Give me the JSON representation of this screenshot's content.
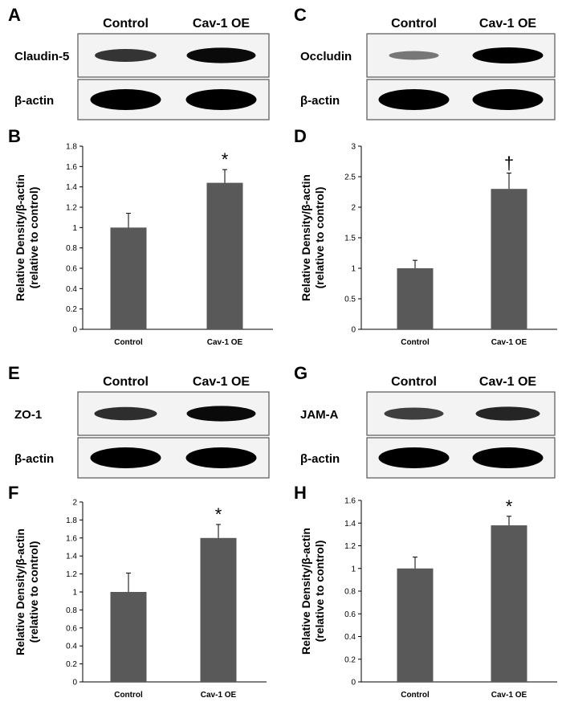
{
  "colors": {
    "bar": "#595959",
    "band": "#000000",
    "frame": "#555555"
  },
  "blots": [
    {
      "label": "A",
      "columns": [
        "Control",
        "Cav-1 OE"
      ],
      "rows": [
        {
          "name": "Claudin-5",
          "intensity": [
            0.72,
            0.95
          ]
        },
        {
          "name": "β-actin",
          "intensity": [
            1.0,
            1.0
          ]
        }
      ]
    },
    {
      "label": "C",
      "columns": [
        "Control",
        "Cav-1 OE"
      ],
      "rows": [
        {
          "name": "Occludin",
          "intensity": [
            0.35,
            1.0
          ]
        },
        {
          "name": "β-actin",
          "intensity": [
            1.0,
            1.0
          ]
        }
      ]
    },
    {
      "label": "E",
      "columns": [
        "Control",
        "Cav-1 OE"
      ],
      "rows": [
        {
          "name": "ZO-1",
          "intensity": [
            0.75,
            0.95
          ]
        },
        {
          "name": "β-actin",
          "intensity": [
            1.0,
            1.0
          ]
        }
      ]
    },
    {
      "label": "G",
      "columns": [
        "Control",
        "Cav-1 OE"
      ],
      "rows": [
        {
          "name": "JAM-A",
          "intensity": [
            0.65,
            0.8
          ]
        },
        {
          "name": "β-actin",
          "intensity": [
            1.0,
            1.0
          ]
        }
      ]
    }
  ],
  "chart_data": [
    {
      "panel": "B",
      "type": "bar",
      "categories": [
        "Control",
        "Cav-1 OE"
      ],
      "values": [
        1.0,
        1.44
      ],
      "errors": [
        0.14,
        0.13
      ],
      "annotation": "*",
      "ylabel": "Relative Density/β-actin",
      "ylabel2": "(relative to control)",
      "ylim": [
        0,
        1.8
      ],
      "yticks": [
        "0",
        "0.2",
        "0.4",
        "0.6",
        "0.8",
        "1",
        "1.2",
        "1.4",
        "1.6",
        "1.8"
      ]
    },
    {
      "panel": "D",
      "type": "bar",
      "categories": [
        "Control",
        "Cav-1 OE"
      ],
      "values": [
        1.0,
        2.3
      ],
      "errors": [
        0.13,
        0.26
      ],
      "annotation": "†",
      "ylabel": "Relative Density/β-actin",
      "ylabel2": "(relative to control)",
      "ylim": [
        0,
        3
      ],
      "yticks": [
        "0",
        "0.5",
        "1",
        "1.5",
        "2",
        "2.5",
        "3"
      ]
    },
    {
      "panel": "F",
      "type": "bar",
      "categories": [
        "Control",
        "Cav-1 OE"
      ],
      "values": [
        1.0,
        1.6
      ],
      "errors": [
        0.21,
        0.15
      ],
      "annotation": "*",
      "ylabel": "Relative Density/β-actin",
      "ylabel2": "(relative to control)",
      "ylim": [
        0,
        2
      ],
      "yticks": [
        "0",
        "0.2",
        "0.4",
        "0.6",
        "0.8",
        "1",
        "1.2",
        "1.4",
        "1.6",
        "1.8",
        "2"
      ]
    },
    {
      "panel": "H",
      "type": "bar",
      "categories": [
        "Control",
        "Cav-1 OE"
      ],
      "values": [
        1.0,
        1.38
      ],
      "errors": [
        0.1,
        0.08
      ],
      "annotation": "*",
      "ylabel": "Relative Density/β-actin",
      "ylabel2": "(relative to control)",
      "ylim": [
        0,
        1.6
      ],
      "yticks": [
        "0",
        "0.2",
        "0.4",
        "0.6",
        "0.8",
        "1",
        "1.2",
        "1.4",
        "1.6"
      ]
    }
  ]
}
